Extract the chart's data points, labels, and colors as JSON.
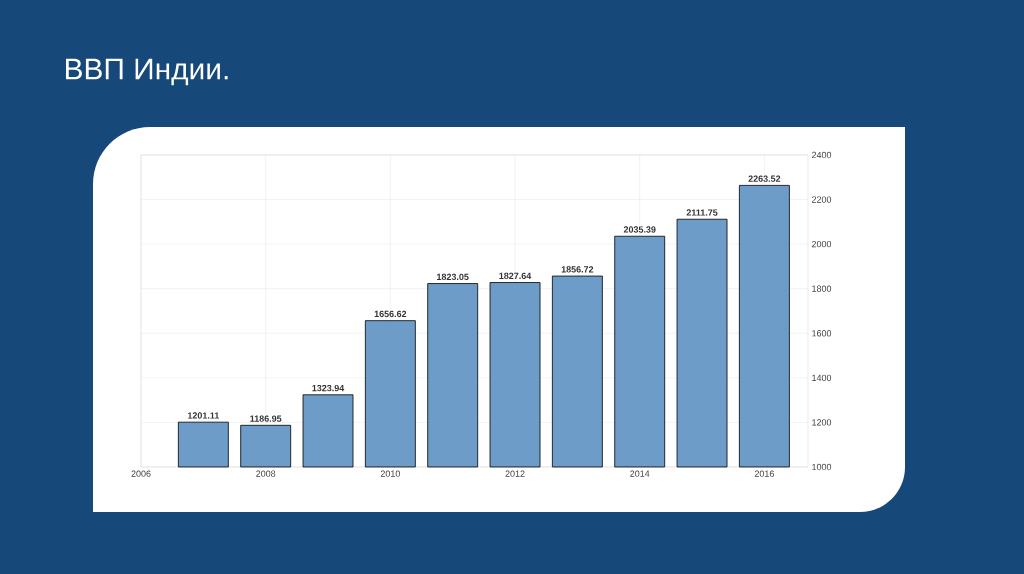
{
  "chart_data": {
    "type": "bar",
    "title": "ВВП Индии.",
    "x": [
      2007,
      2008,
      2009,
      2010,
      2011,
      2012,
      2013,
      2014,
      2015,
      2016
    ],
    "values": [
      1201.11,
      1186.95,
      1323.94,
      1656.62,
      1823.05,
      1827.64,
      1856.72,
      2035.39,
      2111.75,
      2263.52
    ],
    "color": "#6d9cc9",
    "xlim": [
      2006,
      2016.7
    ],
    "xticks": [
      2006,
      2008,
      2010,
      2012,
      2014,
      2016
    ],
    "ylim": [
      1000,
      2400
    ],
    "yticks": [
      1000,
      1200,
      1400,
      1600,
      1800,
      2000,
      2200,
      2400
    ],
    "grid": true,
    "data_labels": true
  }
}
